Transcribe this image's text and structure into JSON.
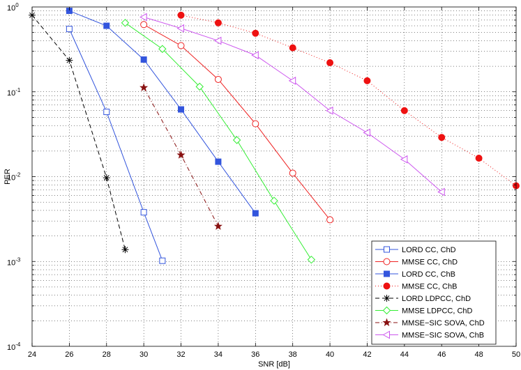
{
  "chart_data": {
    "type": "line",
    "title": "",
    "xlabel": "SNR [dB]",
    "ylabel": "PER",
    "xlim": [
      24,
      50
    ],
    "ylim": [
      0.0001,
      1
    ],
    "yscale": "log",
    "grid": true,
    "legend_position": "bottom-right",
    "x_ticks": [
      "24",
      "26",
      "28",
      "30",
      "32",
      "34",
      "36",
      "38",
      "40",
      "42",
      "44",
      "46",
      "48",
      "50"
    ],
    "y_ticks": [
      {
        "value": 1,
        "mantissa": "10",
        "exponent": "0"
      },
      {
        "value": 0.1,
        "mantissa": "10",
        "exponent": "-1"
      },
      {
        "value": 0.01,
        "mantissa": "10",
        "exponent": "-2"
      },
      {
        "value": 0.001,
        "mantissa": "10",
        "exponent": "-3"
      },
      {
        "value": 0.0001,
        "mantissa": "10",
        "exponent": "-4"
      }
    ],
    "series": [
      {
        "name": "LORD CC, ChD",
        "color": "#3355dd",
        "dash": "solid",
        "marker": "square-open",
        "x": [
          26,
          28,
          30,
          31
        ],
        "y": [
          0.55,
          0.058,
          0.0038,
          0.00102
        ]
      },
      {
        "name": "MMSE CC, ChD",
        "color": "#ee2222",
        "dash": "solid",
        "marker": "circle-open",
        "x": [
          30,
          32,
          34,
          36,
          38,
          40
        ],
        "y": [
          0.62,
          0.35,
          0.14,
          0.042,
          0.011,
          0.0031
        ]
      },
      {
        "name": "LORD CC, ChB",
        "color": "#3355dd",
        "dash": "solid",
        "marker": "square-filled",
        "x": [
          26,
          28,
          30,
          32,
          34,
          36
        ],
        "y": [
          0.9,
          0.6,
          0.24,
          0.062,
          0.015,
          0.0037
        ]
      },
      {
        "name": "MMSE CC, ChB",
        "color": "#ee1111",
        "dash": "dotted",
        "marker": "circle-filled",
        "x": [
          32,
          34,
          36,
          38,
          40,
          42,
          44,
          46,
          48,
          50
        ],
        "y": [
          0.8,
          0.65,
          0.49,
          0.33,
          0.22,
          0.135,
          0.06,
          0.029,
          0.0165,
          0.0078
        ]
      },
      {
        "name": "LORD LDPCC, ChD",
        "color": "#000000",
        "dash": "dashed",
        "marker": "asterisk",
        "x": [
          24,
          26,
          28,
          29
        ],
        "y": [
          0.8,
          0.235,
          0.0097,
          0.00138
        ]
      },
      {
        "name": "MMSE LDPCC, ChD",
        "color": "#33ee33",
        "dash": "solid",
        "marker": "diamond-open",
        "x": [
          29,
          31,
          33,
          35,
          37,
          39
        ],
        "y": [
          0.65,
          0.32,
          0.115,
          0.027,
          0.0052,
          0.00105
        ]
      },
      {
        "name": "MMSE−SIC SOVA, ChD",
        "color": "#881111",
        "dash": "dashdot",
        "marker": "star",
        "x": [
          30,
          32,
          34
        ],
        "y": [
          0.112,
          0.018,
          0.0026
        ]
      },
      {
        "name": "MMSE−SIC SOVA, ChB",
        "color": "#cc55ee",
        "dash": "solid",
        "marker": "triangle-left-open",
        "x": [
          30,
          32,
          34,
          36,
          38,
          40,
          42,
          44,
          46
        ],
        "y": [
          0.76,
          0.56,
          0.4,
          0.27,
          0.135,
          0.06,
          0.033,
          0.016,
          0.0066
        ]
      }
    ]
  }
}
